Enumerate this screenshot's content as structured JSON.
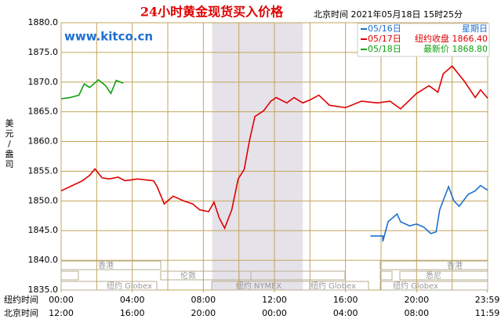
{
  "chart_data": {
    "type": "line",
    "title": "24小时黄金现货买入价格",
    "subtitle": "北京时间 2021年05月18日 15时25分",
    "watermark": "www.kitco.cn",
    "ylabel": "美元/盎司",
    "row_labels": [
      "纽约时间",
      "北京时间"
    ],
    "xlim": [
      0,
      24
    ],
    "xticks": [
      {
        "value": 0,
        "label": "00:00"
      },
      {
        "value": 4,
        "label": "04:00"
      },
      {
        "value": 8,
        "label": "08:00"
      },
      {
        "value": 12,
        "label": "12:00"
      },
      {
        "value": 16,
        "label": "16:00"
      },
      {
        "value": 20,
        "label": "20:00"
      },
      {
        "value": 23.98,
        "label": "23:59"
      }
    ],
    "xticks_beijing": [
      "12:00",
      "16:00",
      "20:00",
      "00:00",
      "04:00",
      "08:00",
      "11:59"
    ],
    "ylim": [
      1835,
      1880
    ],
    "yticks": [
      {
        "value": 1835,
        "label": "1835.0"
      },
      {
        "value": 1840,
        "label": "1840.0"
      },
      {
        "value": 1845,
        "label": "1845.0"
      },
      {
        "value": 1850,
        "label": "1850.0"
      },
      {
        "value": 1855,
        "label": "1855.0"
      },
      {
        "value": 1860,
        "label": "1860.0"
      },
      {
        "value": 1865,
        "label": "1865.0"
      },
      {
        "value": 1870,
        "label": "1870.0"
      },
      {
        "value": 1875,
        "label": "1875.0"
      },
      {
        "value": 1880,
        "label": "1880.0"
      }
    ],
    "grid": true,
    "sessions": [
      "香港",
      "香港",
      "伦敦",
      "悉尼",
      "纽约 Globex",
      "纽约 NYMEX",
      "纽约 Globex",
      "纽约 Globex"
    ],
    "series": [
      {
        "name": "05/16日",
        "legend_text": "星期日",
        "color": "#1e6fd0",
        "x": [
          17.4,
          18.1,
          18.1,
          18.4,
          18.9,
          19.1,
          19.6,
          20.0,
          20.4,
          20.8,
          21.1,
          21.3,
          21.8,
          22.1,
          22.4,
          22.9,
          23.3,
          23.6,
          24.0
        ],
        "values": [
          1844.1,
          1844.1,
          1843.2,
          1846.5,
          1847.8,
          1846.5,
          1845.8,
          1846.1,
          1845.6,
          1844.5,
          1844.8,
          1848.5,
          1852.4,
          1850.0,
          1849.1,
          1851.1,
          1851.7,
          1852.6,
          1851.8
        ]
      },
      {
        "name": "05/17日",
        "legend_text": "纽约收盘 1866.40",
        "color": "#e00000",
        "x": [
          0,
          0.5,
          1.2,
          1.6,
          1.9,
          2.3,
          2.7,
          3.2,
          3.6,
          4.3,
          5.2,
          5.4,
          5.8,
          6.3,
          6.9,
          7.4,
          7.8,
          8.3,
          8.6,
          8.9,
          9.2,
          9.6,
          9.96,
          10.3,
          10.6,
          10.9,
          11.4,
          11.8,
          12.1,
          12.7,
          13.1,
          13.6,
          14.0,
          14.5,
          15.1,
          16.0,
          16.9,
          17.8,
          18.5,
          19.1,
          20.0,
          20.7,
          21.2,
          21.5,
          22.0,
          22.7,
          23.3,
          23.6,
          24.0
        ],
        "values": [
          1851.7,
          1852.4,
          1853.4,
          1854.3,
          1855.4,
          1853.9,
          1853.7,
          1854.0,
          1853.4,
          1853.7,
          1853.4,
          1852.4,
          1849.5,
          1850.8,
          1850.0,
          1849.5,
          1848.5,
          1848.2,
          1849.8,
          1847.1,
          1845.4,
          1848.5,
          1853.7,
          1855.3,
          1860.2,
          1864.2,
          1865.2,
          1866.8,
          1867.4,
          1866.5,
          1867.4,
          1866.5,
          1867.0,
          1867.8,
          1866.1,
          1865.7,
          1866.8,
          1866.5,
          1866.8,
          1865.5,
          1868.1,
          1869.4,
          1868.3,
          1871.4,
          1872.7,
          1870.1,
          1867.4,
          1868.7,
          1867.3
        ]
      },
      {
        "name": "05/18日",
        "legend_text": "最新价 1868.80",
        "color": "#10a010",
        "x": [
          0,
          0.5,
          1.0,
          1.3,
          1.6,
          2.1,
          2.5,
          2.8,
          3.1,
          3.5
        ],
        "values": [
          1867.2,
          1867.4,
          1867.8,
          1869.7,
          1869.1,
          1870.4,
          1869.4,
          1868.1,
          1870.3,
          1869.8
        ]
      }
    ]
  }
}
